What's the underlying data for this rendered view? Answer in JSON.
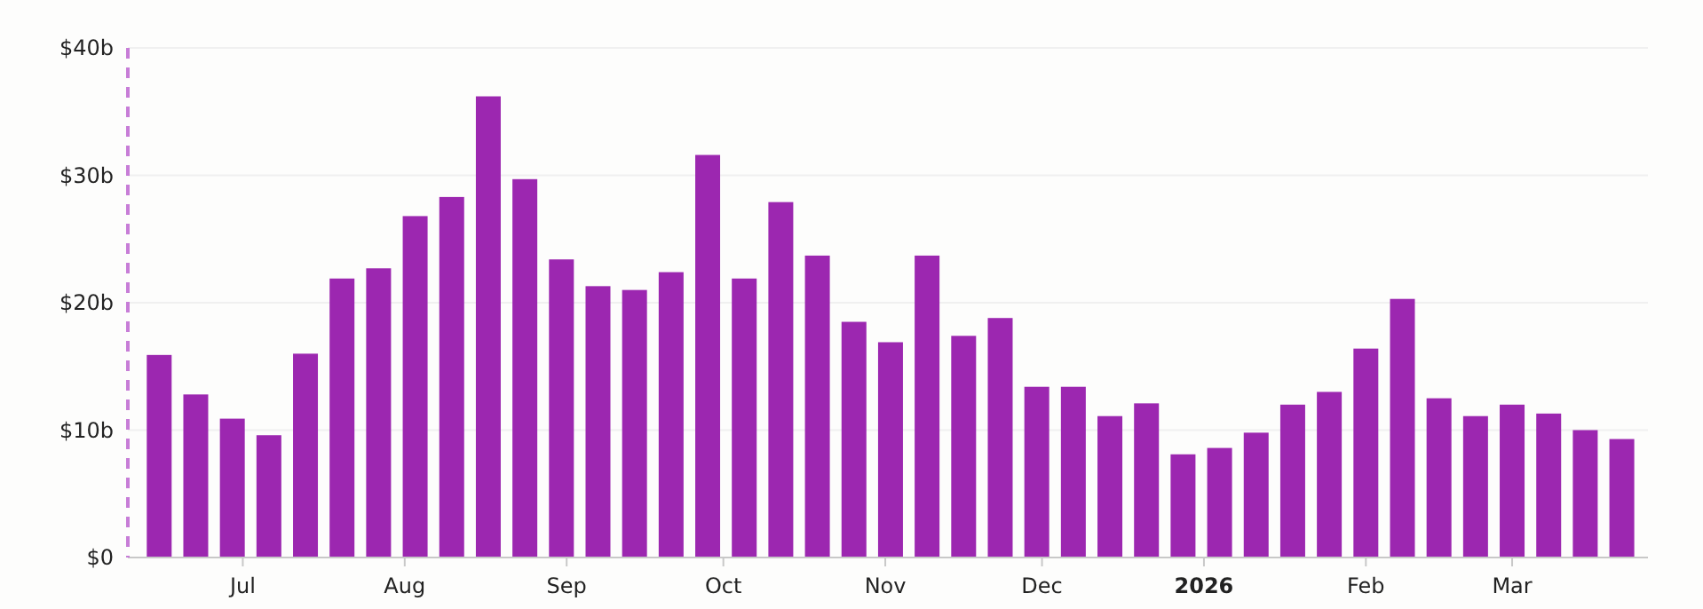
{
  "chart_data": {
    "type": "bar",
    "color": "#9c27b0",
    "x": [
      "2025-06-15",
      "2025-06-22",
      "2025-06-29",
      "2025-07-06",
      "2025-07-13",
      "2025-07-20",
      "2025-07-27",
      "2025-08-03",
      "2025-08-10",
      "2025-08-17",
      "2025-08-24",
      "2025-08-31",
      "2025-09-07",
      "2025-09-14",
      "2025-09-21",
      "2025-09-28",
      "2025-10-05",
      "2025-10-12",
      "2025-10-19",
      "2025-10-26",
      "2025-11-02",
      "2025-11-09",
      "2025-11-16",
      "2025-11-23",
      "2025-11-30",
      "2025-12-07",
      "2025-12-14",
      "2025-12-21",
      "2025-12-28",
      "2026-01-04",
      "2026-01-11",
      "2026-01-18",
      "2026-01-25",
      "2026-02-01",
      "2026-02-08",
      "2026-02-15",
      "2026-02-22",
      "2026-03-01",
      "2026-03-08",
      "2026-03-15",
      "2026-03-22"
    ],
    "values": [
      15.9,
      12.8,
      10.9,
      9.6,
      16.0,
      21.9,
      22.7,
      26.8,
      28.3,
      36.2,
      29.7,
      23.4,
      21.3,
      21.0,
      22.4,
      31.6,
      21.9,
      27.9,
      23.7,
      18.5,
      16.9,
      23.7,
      17.4,
      18.8,
      13.4,
      13.4,
      11.1,
      12.1,
      8.1,
      8.6,
      9.8,
      12.0,
      13.0,
      16.4,
      20.3,
      12.5,
      11.1,
      12.0,
      11.3,
      10.0,
      9.3
    ],
    "xlim": [
      "2025-06-09",
      "2026-03-27"
    ],
    "xticks": [
      {
        "value": "2025-07-01",
        "label": "Jul"
      },
      {
        "value": "2025-08-01",
        "label": "Aug"
      },
      {
        "value": "2025-09-01",
        "label": "Sep"
      },
      {
        "value": "2025-10-01",
        "label": "Oct"
      },
      {
        "value": "2025-11-01",
        "label": "Nov"
      },
      {
        "value": "2025-12-01",
        "label": "Dec"
      },
      {
        "value": "2026-01-01",
        "label": "2026"
      },
      {
        "value": "2026-02-01",
        "label": "Feb"
      },
      {
        "value": "2026-03-01",
        "label": "Mar"
      }
    ],
    "ylim": [
      0,
      40
    ],
    "yticks": [
      {
        "value": 0,
        "label": "$0"
      },
      {
        "value": 10,
        "label": "$10b"
      },
      {
        "value": 20,
        "label": "$20b"
      },
      {
        "value": 30,
        "label": "$30b"
      },
      {
        "value": 40,
        "label": "$40b"
      }
    ],
    "grid": "y",
    "ref_lines": [
      {
        "axis": "x",
        "value": "2025-06-09",
        "color": "#c77dd7",
        "line_style": "dashed"
      }
    ]
  }
}
